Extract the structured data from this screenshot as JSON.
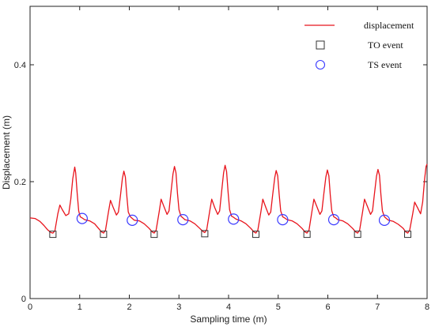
{
  "chart_data": {
    "type": "line",
    "xlabel": "Sampling time (m)",
    "ylabel": "Displacement (m)",
    "xlim": [
      0,
      8
    ],
    "ylim": [
      0,
      0.5
    ],
    "xticks": [
      "0",
      "1",
      "2",
      "3",
      "4",
      "5",
      "6",
      "7",
      "8"
    ],
    "yticks": [
      "0",
      "0.2",
      "0.4"
    ],
    "ytick_values": [
      0,
      0.2,
      0.4
    ],
    "grid": false,
    "legend_position": "top-right",
    "series": [
      {
        "name": "displacement",
        "color": "#e8141c",
        "x": [
          0.0,
          0.1,
          0.2,
          0.28,
          0.35,
          0.42,
          0.46,
          0.5,
          0.56,
          0.6,
          0.65,
          0.72,
          0.78,
          0.82,
          0.86,
          0.9,
          0.92,
          0.95,
          0.98,
          1.01,
          1.05,
          1.1,
          1.2,
          1.3,
          1.38,
          1.44,
          1.48,
          1.52,
          1.58,
          1.62,
          1.68,
          1.74,
          1.78,
          1.82,
          1.86,
          1.89,
          1.92,
          1.95,
          1.98,
          2.02,
          2.06,
          2.1,
          2.2,
          2.3,
          2.4,
          2.46,
          2.5,
          2.54,
          2.6,
          2.64,
          2.7,
          2.76,
          2.8,
          2.84,
          2.88,
          2.91,
          2.94,
          2.97,
          3.0,
          3.04,
          3.08,
          3.12,
          3.22,
          3.32,
          3.42,
          3.48,
          3.52,
          3.56,
          3.62,
          3.66,
          3.72,
          3.78,
          3.82,
          3.86,
          3.9,
          3.93,
          3.96,
          3.99,
          4.02,
          4.06,
          4.1,
          4.15,
          4.25,
          4.35,
          4.45,
          4.51,
          4.55,
          4.59,
          4.65,
          4.69,
          4.75,
          4.81,
          4.85,
          4.89,
          4.93,
          4.96,
          4.99,
          5.02,
          5.05,
          5.09,
          5.13,
          5.18,
          5.28,
          5.38,
          5.48,
          5.54,
          5.58,
          5.62,
          5.68,
          5.72,
          5.78,
          5.84,
          5.88,
          5.92,
          5.96,
          5.99,
          6.02,
          6.05,
          6.08,
          6.12,
          6.16,
          6.2,
          6.3,
          6.4,
          6.5,
          6.56,
          6.6,
          6.64,
          6.7,
          6.74,
          6.8,
          6.86,
          6.9,
          6.94,
          6.98,
          7.01,
          7.04,
          7.07,
          7.1,
          7.14,
          7.18,
          7.22,
          7.32,
          7.42,
          7.52,
          7.57,
          7.61,
          7.65,
          7.71,
          7.75,
          7.81,
          7.87,
          7.91,
          7.95,
          7.98,
          8.0
        ],
        "y": [
          0.138,
          0.137,
          0.132,
          0.125,
          0.118,
          0.113,
          0.112,
          0.116,
          0.145,
          0.16,
          0.152,
          0.142,
          0.145,
          0.17,
          0.205,
          0.225,
          0.215,
          0.18,
          0.15,
          0.14,
          0.138,
          0.135,
          0.133,
          0.128,
          0.12,
          0.114,
          0.112,
          0.117,
          0.148,
          0.168,
          0.155,
          0.143,
          0.148,
          0.175,
          0.205,
          0.218,
          0.208,
          0.175,
          0.148,
          0.14,
          0.137,
          0.134,
          0.133,
          0.128,
          0.12,
          0.114,
          0.112,
          0.117,
          0.148,
          0.17,
          0.157,
          0.144,
          0.15,
          0.182,
          0.213,
          0.226,
          0.215,
          0.18,
          0.152,
          0.141,
          0.138,
          0.135,
          0.133,
          0.128,
          0.12,
          0.115,
          0.113,
          0.118,
          0.15,
          0.17,
          0.156,
          0.144,
          0.15,
          0.183,
          0.215,
          0.228,
          0.217,
          0.182,
          0.152,
          0.141,
          0.139,
          0.136,
          0.133,
          0.128,
          0.12,
          0.114,
          0.112,
          0.117,
          0.148,
          0.17,
          0.156,
          0.143,
          0.148,
          0.178,
          0.207,
          0.219,
          0.21,
          0.178,
          0.15,
          0.14,
          0.138,
          0.135,
          0.133,
          0.128,
          0.12,
          0.114,
          0.112,
          0.117,
          0.149,
          0.17,
          0.157,
          0.144,
          0.15,
          0.18,
          0.208,
          0.22,
          0.21,
          0.177,
          0.15,
          0.14,
          0.138,
          0.135,
          0.133,
          0.128,
          0.12,
          0.114,
          0.112,
          0.117,
          0.148,
          0.17,
          0.157,
          0.144,
          0.15,
          0.18,
          0.209,
          0.221,
          0.211,
          0.178,
          0.15,
          0.14,
          0.137,
          0.134,
          0.132,
          0.127,
          0.12,
          0.114,
          0.112,
          0.117,
          0.145,
          0.165,
          0.155,
          0.145,
          0.165,
          0.205,
          0.226,
          0.23
        ]
      },
      {
        "name": "TO event",
        "marker": "square",
        "color": "#333333",
        "x": [
          0.46,
          1.48,
          2.5,
          3.52,
          4.55,
          5.58,
          6.6,
          7.61
        ],
        "y": [
          0.11,
          0.11,
          0.11,
          0.111,
          0.11,
          0.11,
          0.11,
          0.11
        ]
      },
      {
        "name": "TS event",
        "marker": "circle",
        "color": "#3a3aff",
        "x": [
          1.05,
          2.06,
          3.08,
          4.1,
          5.09,
          6.12,
          7.14
        ],
        "y": [
          0.137,
          0.134,
          0.135,
          0.136,
          0.135,
          0.135,
          0.134
        ]
      }
    ]
  }
}
